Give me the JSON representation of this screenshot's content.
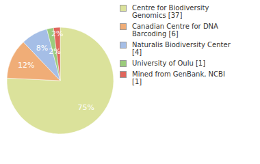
{
  "chart_data": {
    "type": "pie",
    "categories": [
      "Centre for Biodiversity Genomics [37]",
      "Canadian Centre for DNA Barcoding [6]",
      "Naturalis Biodiversity Center [4]",
      "University of Oulu [1]",
      "Mined from GenBank, NCBI [1]"
    ],
    "values": [
      75,
      12,
      8,
      2,
      2
    ],
    "value_labels": [
      "75%",
      "12%",
      "8%",
      "2%",
      "2%"
    ],
    "colors": [
      "#dbe29b",
      "#f0ad77",
      "#a5bee6",
      "#9bcb7c",
      "#e0665c"
    ],
    "data_labels": true,
    "legend": "right"
  }
}
